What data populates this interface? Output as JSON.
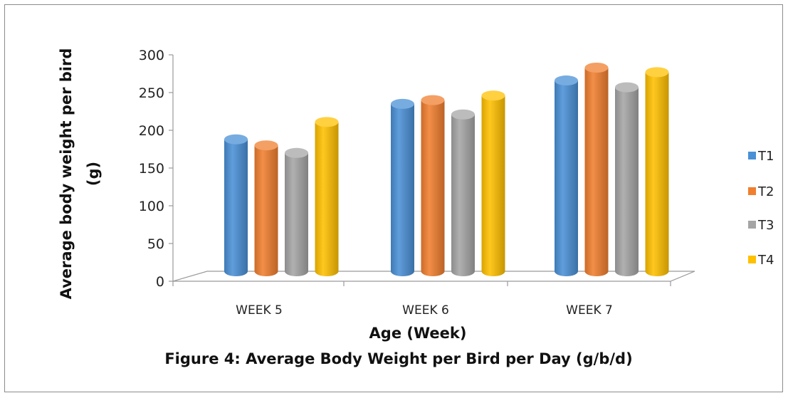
{
  "chart_data": {
    "type": "bar",
    "style": "3d-cylinder",
    "categories": [
      "WEEK 5",
      "WEEK 6",
      "WEEK 7"
    ],
    "series": [
      {
        "name": "T1",
        "values": [
          188,
          235,
          266
        ],
        "color": "#4a90d6"
      },
      {
        "name": "T2",
        "values": [
          180,
          240,
          283
        ],
        "color": "#f07f2f"
      },
      {
        "name": "T3",
        "values": [
          170,
          221,
          257
        ],
        "color": "#a5a5a5"
      },
      {
        "name": "T4",
        "values": [
          211,
          246,
          277
        ],
        "color": "#ffc000"
      }
    ],
    "ylim": [
      0,
      300
    ],
    "yticks": [
      "0",
      "50",
      "100",
      "150",
      "200",
      "250",
      "300"
    ],
    "xlabel": "Age (Week)",
    "ylabel_lines": [
      "Average body weight per bird",
      "(g)"
    ],
    "caption": "Figure 4: Average Body Weight per Bird per Day (g/b/d)",
    "legend_position": "right",
    "grid": false
  }
}
